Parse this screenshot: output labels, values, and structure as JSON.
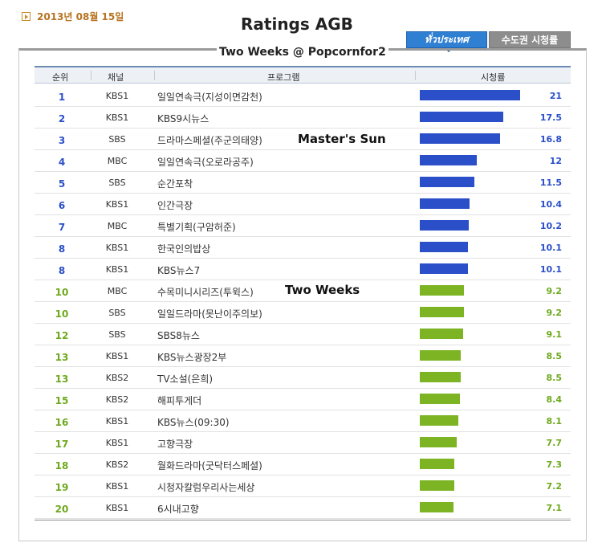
{
  "date": "2013년 08월 15일",
  "header_title": "Ratings AGB",
  "subtitle": "Two Weeks @ Popcornfor2",
  "tabs": [
    {
      "label": "ทั่วประเทศ",
      "active": true
    },
    {
      "label": "수도권 시청률",
      "active": false
    }
  ],
  "columns": {
    "rank": "순위",
    "channel": "채널",
    "program": "프로그램",
    "rating": "시청률"
  },
  "annotations": {
    "masters_sun": "Master's Sun",
    "two_weeks": "Two Weeks"
  },
  "colors": {
    "blue": "#2a4fc9",
    "green": "#7cb424"
  },
  "chart_data": {
    "type": "bar",
    "title": "Ratings AGB",
    "xlabel": "",
    "ylabel": "시청률",
    "xlim": [
      0,
      21
    ],
    "rows": [
      {
        "rank": "1",
        "channel": "KBS1",
        "program": "일일연속극(지성이면감천)",
        "value": 21,
        "color": "blue"
      },
      {
        "rank": "2",
        "channel": "KBS1",
        "program": "KBS9시뉴스",
        "value": 17.5,
        "color": "blue"
      },
      {
        "rank": "3",
        "channel": "SBS",
        "program": "드라마스페셜(주군의태양)",
        "value": 16.8,
        "color": "blue"
      },
      {
        "rank": "4",
        "channel": "MBC",
        "program": "일일연속극(오로라공주)",
        "value": 12,
        "color": "blue"
      },
      {
        "rank": "5",
        "channel": "SBS",
        "program": "순간포착",
        "value": 11.5,
        "color": "blue"
      },
      {
        "rank": "6",
        "channel": "KBS1",
        "program": "인간극장",
        "value": 10.4,
        "color": "blue"
      },
      {
        "rank": "7",
        "channel": "MBC",
        "program": "특별기획(구암허준)",
        "value": 10.2,
        "color": "blue"
      },
      {
        "rank": "8",
        "channel": "KBS1",
        "program": "한국인의밥상",
        "value": 10.1,
        "color": "blue"
      },
      {
        "rank": "8",
        "channel": "KBS1",
        "program": "KBS뉴스7",
        "value": 10.1,
        "color": "blue"
      },
      {
        "rank": "10",
        "channel": "MBC",
        "program": "수목미니시리즈(투윅스)",
        "value": 9.2,
        "color": "green"
      },
      {
        "rank": "10",
        "channel": "SBS",
        "program": "일일드라마(못난이주의보)",
        "value": 9.2,
        "color": "green"
      },
      {
        "rank": "12",
        "channel": "SBS",
        "program": "SBS8뉴스",
        "value": 9.1,
        "color": "green"
      },
      {
        "rank": "13",
        "channel": "KBS1",
        "program": "KBS뉴스광장2부",
        "value": 8.5,
        "color": "green"
      },
      {
        "rank": "13",
        "channel": "KBS2",
        "program": "TV소설(은희)",
        "value": 8.5,
        "color": "green"
      },
      {
        "rank": "15",
        "channel": "KBS2",
        "program": "해피투게더",
        "value": 8.4,
        "color": "green"
      },
      {
        "rank": "16",
        "channel": "KBS1",
        "program": "KBS뉴스(09:30)",
        "value": 8.1,
        "color": "green"
      },
      {
        "rank": "17",
        "channel": "KBS1",
        "program": "고향극장",
        "value": 7.7,
        "color": "green"
      },
      {
        "rank": "18",
        "channel": "KBS2",
        "program": "월화드라마(굿닥터스페셜)",
        "value": 7.3,
        "color": "green"
      },
      {
        "rank": "19",
        "channel": "KBS1",
        "program": "시청자칼럼우리사는세상",
        "value": 7.2,
        "color": "green"
      },
      {
        "rank": "20",
        "channel": "KBS1",
        "program": "6시내고향",
        "value": 7.1,
        "color": "green"
      }
    ]
  }
}
